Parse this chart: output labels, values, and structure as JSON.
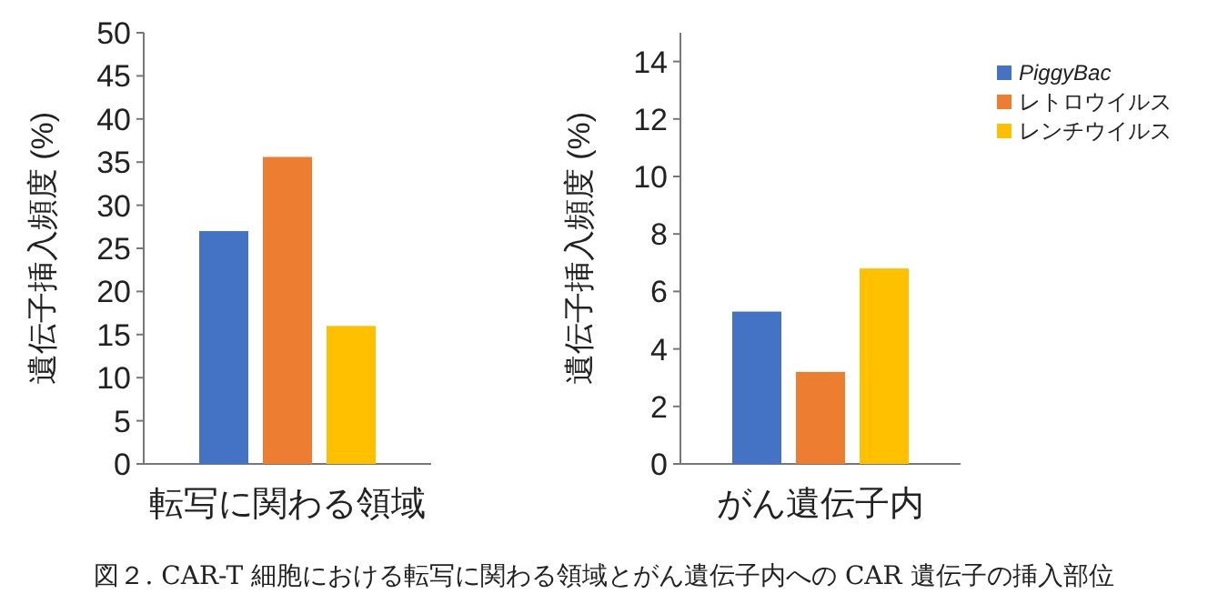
{
  "chart_data": [
    {
      "type": "bar",
      "categories": [
        "転写に関わる領域"
      ],
      "ylabel": "遺伝子挿入頻度 (%)",
      "ylim": [
        0,
        50
      ],
      "yticks": [
        0,
        5,
        10,
        15,
        20,
        25,
        30,
        35,
        40,
        45,
        50
      ],
      "legend": false,
      "series": [
        {
          "color": "#4472c4",
          "values": [
            27
          ]
        },
        {
          "color": "#ed7d31",
          "values": [
            35.6
          ]
        },
        {
          "color": "#ffc000",
          "values": [
            16
          ]
        }
      ]
    },
    {
      "type": "bar",
      "categories": [
        "がん遺伝子内"
      ],
      "ylabel": "遺伝子挿入頻度 (%)",
      "ylim": [
        0,
        15
      ],
      "yticks": [
        0,
        2,
        4,
        6,
        8,
        10,
        12,
        14
      ],
      "legend": "right",
      "series": [
        {
          "name": "PiggyBac",
          "color": "#4472c4",
          "values": [
            5.3
          ]
        },
        {
          "name": "レトロウイルス",
          "color": "#ed7d31",
          "values": [
            3.2
          ]
        },
        {
          "name": "レンチウイルス",
          "color": "#ffc000",
          "values": [
            6.8
          ]
        }
      ],
      "annotations": [
        "図２.  CAR-T 細胞における転写に関わる領域とがん遺伝子内への CAR 遺伝子の挿入部位"
      ]
    }
  ]
}
